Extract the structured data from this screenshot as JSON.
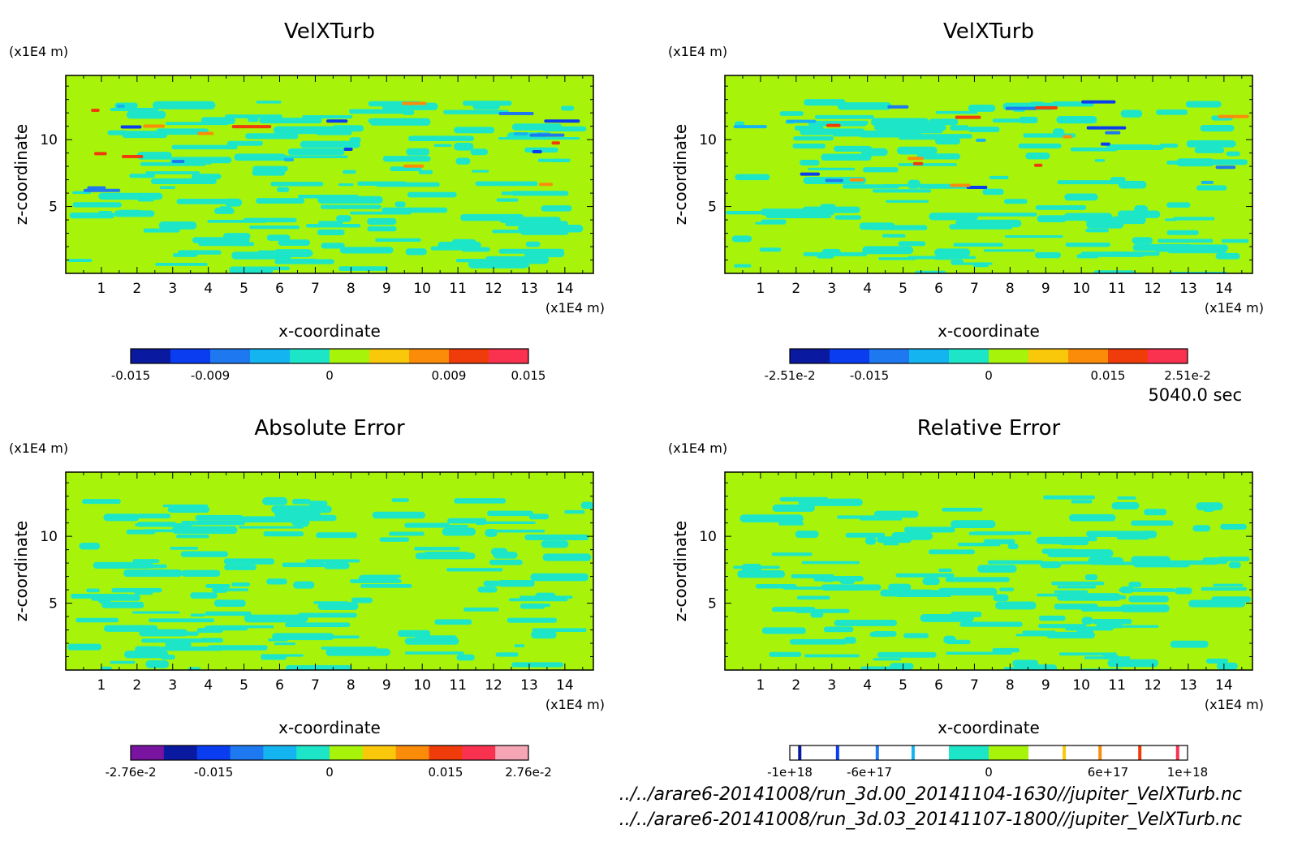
{
  "figure": {
    "time_label": "5040.0 sec",
    "file_paths": [
      "../../arare6-20141008/run_3d.00_20141104-1630//jupiter_VelXTurb.nc",
      "../../arare6-20141008/run_3d.03_20141107-1800//jupiter_VelXTurb.nc"
    ],
    "plot_colors": {
      "background": "#a7f40a",
      "secondary": "#1de6c8"
    }
  },
  "chart_data": [
    {
      "type": "heatmap",
      "title": "VelXTurb",
      "xlabel": "x-coordinate",
      "ylabel": "z-coordinate",
      "x_unit": "(x1E4 m)",
      "y_unit": "(x1E4 m)",
      "xlim": [
        0,
        14.8
      ],
      "ylim": [
        0,
        14.8
      ],
      "x_ticks": [
        "1",
        "2",
        "3",
        "4",
        "5",
        "6",
        "7",
        "8",
        "9",
        "10",
        "11",
        "12",
        "13",
        "14"
      ],
      "y_ticks": [
        "5",
        "10"
      ],
      "colorbar": {
        "colors": [
          "#0a1aa0",
          "#0a3cf0",
          "#1e78f0",
          "#14b4f0",
          "#1de6c8",
          "#a7f40a",
          "#fac80a",
          "#fa8c0a",
          "#f03c0a",
          "#fa3250"
        ],
        "labels": [
          "-0.015",
          "-0.009",
          "0",
          "0.009",
          "0.015"
        ],
        "label_positions": [
          0,
          2,
          5,
          8,
          10
        ]
      }
    },
    {
      "type": "heatmap",
      "title": "VelXTurb",
      "xlabel": "x-coordinate",
      "ylabel": "z-coordinate",
      "x_unit": "(x1E4 m)",
      "y_unit": "(x1E4 m)",
      "xlim": [
        0,
        14.8
      ],
      "ylim": [
        0,
        14.8
      ],
      "x_ticks": [
        "1",
        "2",
        "3",
        "4",
        "5",
        "6",
        "7",
        "8",
        "9",
        "10",
        "11",
        "12",
        "13",
        "14"
      ],
      "y_ticks": [
        "5",
        "10"
      ],
      "colorbar": {
        "colors": [
          "#0a1aa0",
          "#0a3cf0",
          "#1e78f0",
          "#14b4f0",
          "#1de6c8",
          "#a7f40a",
          "#fac80a",
          "#fa8c0a",
          "#f03c0a",
          "#fa3250"
        ],
        "labels": [
          "-2.51e-2",
          "-0.015",
          "0",
          "0.015",
          "2.51e-2"
        ],
        "label_positions": [
          0,
          2,
          5,
          8,
          10
        ]
      }
    },
    {
      "type": "heatmap",
      "title": "Absolute Error",
      "xlabel": "x-coordinate",
      "ylabel": "z-coordinate",
      "x_unit": "(x1E4 m)",
      "y_unit": "(x1E4 m)",
      "xlim": [
        0,
        14.8
      ],
      "ylim": [
        0,
        14.8
      ],
      "x_ticks": [
        "1",
        "2",
        "3",
        "4",
        "5",
        "6",
        "7",
        "8",
        "9",
        "10",
        "11",
        "12",
        "13",
        "14"
      ],
      "y_ticks": [
        "5",
        "10"
      ],
      "colorbar": {
        "colors": [
          "#7814a0",
          "#0a1aa0",
          "#0a3cf0",
          "#1e78f0",
          "#14b4f0",
          "#1de6c8",
          "#a7f40a",
          "#fac80a",
          "#fa8c0a",
          "#f03c0a",
          "#fa3250",
          "#f5a5b4"
        ],
        "labels": [
          "-2.76e-2",
          "-0.015",
          "0",
          "0.015",
          "2.76e-2"
        ],
        "label_positions": [
          0,
          2.5,
          6,
          9.5,
          12
        ]
      }
    },
    {
      "type": "heatmap",
      "title": "Relative Error",
      "xlabel": "x-coordinate",
      "ylabel": "z-coordinate",
      "x_unit": "(x1E4 m)",
      "y_unit": "(x1E4 m)",
      "xlim": [
        0,
        14.8
      ],
      "ylim": [
        0,
        14.8
      ],
      "x_ticks": [
        "1",
        "2",
        "3",
        "4",
        "5",
        "6",
        "7",
        "8",
        "9",
        "10",
        "11",
        "12",
        "13",
        "14"
      ],
      "y_ticks": [
        "5",
        "10"
      ],
      "colorbar": {
        "colors": [
          "#ffffff",
          "#ffffff",
          "#ffffff",
          "#ffffff",
          "#1de6c8",
          "#a7f40a",
          "#ffffff",
          "#ffffff",
          "#ffffff",
          "#ffffff"
        ],
        "labels": [
          "-1e+18",
          "-6e+17",
          "0",
          "6e+17",
          "1e+18"
        ],
        "label_positions": [
          0,
          2,
          5,
          8,
          10
        ],
        "marker_colors": [
          "#0a1aa0",
          "#0a3cf0",
          "#1e78f0",
          "#14b4f0",
          "#fac80a",
          "#fa8c0a",
          "#f03c0a",
          "#fa3250"
        ],
        "marker_positions": [
          0.25,
          1.2,
          2.2,
          3.1,
          6.9,
          7.8,
          8.8,
          9.75
        ]
      }
    }
  ]
}
